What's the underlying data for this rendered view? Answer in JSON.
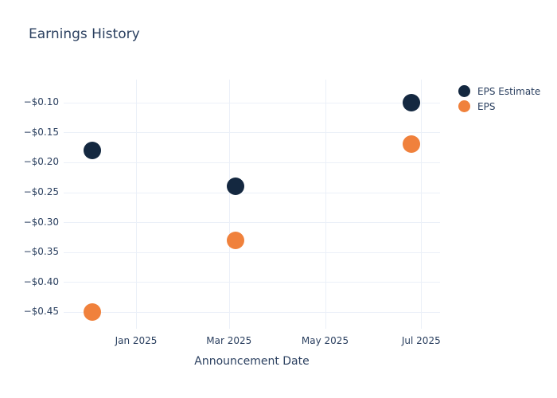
{
  "colors": {
    "background": "#ffffff",
    "text": "#2a3f5f",
    "grid": "#ebf0f8",
    "eps_estimate": "#142840",
    "eps": "#f0813c"
  },
  "chart_data": {
    "type": "scatter",
    "title": "Earnings History",
    "xlabel": "Announcement Date",
    "ylabel": "",
    "grid": true,
    "legend": {
      "position": "top-right",
      "entries": [
        "EPS Estimate",
        "EPS"
      ]
    },
    "x_axis": {
      "title": "Announcement Date",
      "range": [
        "2024-11-16",
        "2025-07-13"
      ],
      "tick_dates": [
        "2025-01-01",
        "2025-03-01",
        "2025-05-01",
        "2025-07-01"
      ],
      "tick_labels": [
        "Jan 2025",
        "Mar 2025",
        "May 2025",
        "Jul 2025"
      ]
    },
    "y_axis": {
      "range": [
        -0.478,
        -0.062
      ],
      "tick_values": [
        -0.1,
        -0.15,
        -0.2,
        -0.25,
        -0.3,
        -0.35,
        -0.4,
        -0.45
      ],
      "tick_labels": [
        "−$0.10",
        "−$0.15",
        "−$0.20",
        "−$0.25",
        "−$0.30",
        "−$0.35",
        "−$0.40",
        "−$0.45"
      ]
    },
    "series": [
      {
        "name": "EPS Estimate",
        "color": "#142840",
        "points": [
          {
            "x": "2024-12-04",
            "y": -0.18
          },
          {
            "x": "2025-03-05",
            "y": -0.24
          },
          {
            "x": "2025-06-25",
            "y": -0.1
          }
        ]
      },
      {
        "name": "EPS",
        "color": "#f0813c",
        "points": [
          {
            "x": "2024-12-04",
            "y": -0.45
          },
          {
            "x": "2025-03-05",
            "y": -0.33
          },
          {
            "x": "2025-06-25",
            "y": -0.17
          }
        ]
      }
    ]
  }
}
